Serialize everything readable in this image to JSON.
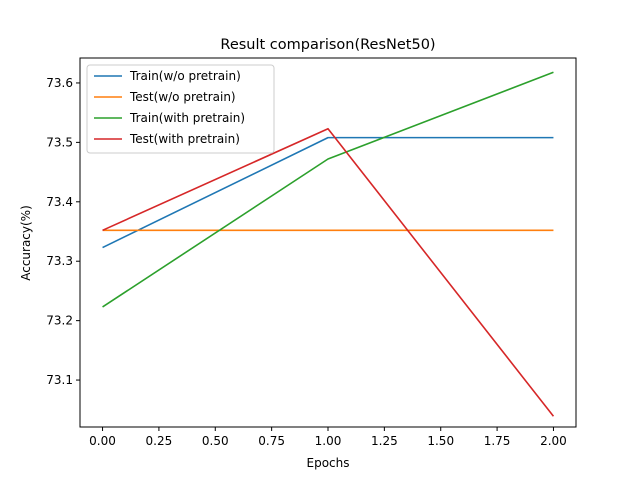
{
  "chart_data": {
    "type": "line",
    "title": "Result comparison(ResNet50)",
    "xlabel": "Epochs",
    "ylabel": "Accuracy(%)",
    "x": [
      0,
      1,
      2
    ],
    "xlim": [
      -0.1,
      2.1
    ],
    "ylim": [
      73.021,
      73.642
    ],
    "xticks": [
      "0.00",
      "0.25",
      "0.50",
      "0.75",
      "1.00",
      "1.25",
      "1.50",
      "1.75",
      "2.00"
    ],
    "yticks": [
      "73.1",
      "73.2",
      "73.3",
      "73.4",
      "73.5",
      "73.6"
    ],
    "grid": false,
    "legend": "top-left",
    "series": [
      {
        "name": "Train(w/o pretrain)",
        "values": [
          73.323,
          73.508,
          73.508
        ],
        "color": "#1f77b4"
      },
      {
        "name": "Test(w/o pretrain)",
        "values": [
          73.352,
          73.352,
          73.352
        ],
        "color": "#ff7f0e"
      },
      {
        "name": "Train(with pretrain)",
        "values": [
          73.223,
          73.472,
          73.618
        ],
        "color": "#2ca02c"
      },
      {
        "name": "Test(with pretrain)",
        "values": [
          73.352,
          73.523,
          73.039
        ],
        "color": "#d62728"
      }
    ]
  }
}
